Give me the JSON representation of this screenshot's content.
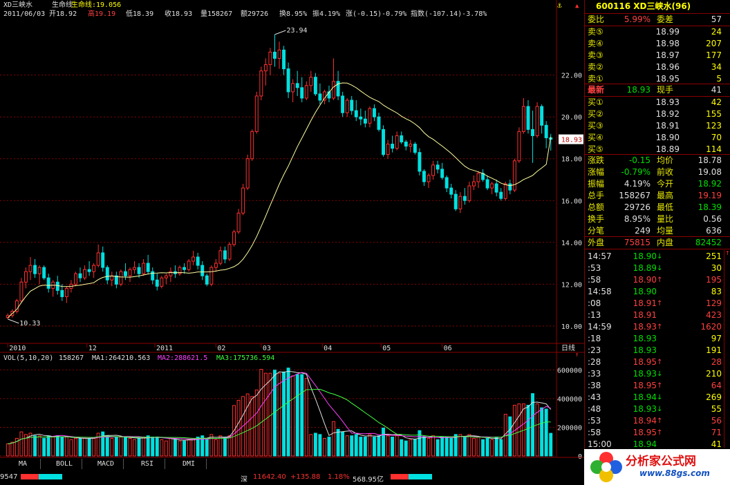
{
  "header": {
    "line1": {
      "stock": "XD三峡水",
      "indicator": "生命线",
      "indicator_value": "生命线:19.056"
    },
    "line2": {
      "date": "2011/06/03",
      "open": "开18.92",
      "high": "高19.19",
      "low": "低18.39",
      "close": "收18.93",
      "volume": "量158267",
      "amount": "额29726",
      "turnover": "换8.95%",
      "amplitude": "振4.19%",
      "change": "涨(-0.15)-0.79%",
      "index": "指数(-107.14)-3.78%"
    }
  },
  "annotations": {
    "high_label": "23.94",
    "low_label": "10.33",
    "current_price_tag": "18.93"
  },
  "price_axis": [
    "22.00",
    "20.00",
    "18.00",
    "16.00",
    "14.00",
    "12.00",
    "10.00"
  ],
  "date_axis": [
    "2010",
    "12",
    "2011",
    "02",
    "03",
    "04",
    "05",
    "06"
  ],
  "date_axis_suffix": "日线",
  "volume_header": {
    "label": "VOL(5,10,20)",
    "vol": "158267",
    "ma1": "MA1:264210.563",
    "ma2": "MA2:288621.5",
    "ma3": "MA3:175736.594"
  },
  "volume_axis": [
    "600000",
    "400000",
    "200000",
    "0"
  ],
  "tabs": [
    "MA",
    "BOLL",
    "MACD",
    "RSI",
    "DMI"
  ],
  "status_bar": {
    "left": "9547",
    "index": "深",
    "index_value": "11642.40",
    "index_change": "+135.88",
    "index_pct": "1.18%",
    "index_amount": "568.95亿"
  },
  "quote": {
    "title": "600116 XD三峡水(96)",
    "ratio_label": "委比",
    "ratio_value": "5.99%",
    "diff_label": "委差",
    "diff_value": "57",
    "asks": [
      {
        "label": "卖⑤",
        "price": "18.99",
        "vol": "24"
      },
      {
        "label": "卖④",
        "price": "18.98",
        "vol": "207"
      },
      {
        "label": "卖③",
        "price": "18.97",
        "vol": "177"
      },
      {
        "label": "卖②",
        "price": "18.96",
        "vol": "34"
      },
      {
        "label": "卖①",
        "price": "18.95",
        "vol": "5"
      }
    ],
    "last": {
      "label": "最新",
      "price": "18.93",
      "label2": "现手",
      "vol": "41"
    },
    "bids": [
      {
        "label": "买①",
        "price": "18.93",
        "vol": "42"
      },
      {
        "label": "买②",
        "price": "18.92",
        "vol": "155"
      },
      {
        "label": "买③",
        "price": "18.91",
        "vol": "123"
      },
      {
        "label": "买④",
        "price": "18.90",
        "vol": "70"
      },
      {
        "label": "买⑤",
        "price": "18.89",
        "vol": "114"
      }
    ],
    "stats": [
      {
        "l1": "涨跌",
        "v1": "-0.15",
        "c1": "dn",
        "l2": "均价",
        "v2": "18.78",
        "c2": "wh"
      },
      {
        "l1": "涨幅",
        "v1": "-0.79%",
        "c1": "dn",
        "l2": "前收",
        "v2": "19.08",
        "c2": "wh"
      },
      {
        "l1": "振幅",
        "v1": "4.19%",
        "c1": "wh",
        "l2": "今开",
        "v2": "18.92",
        "c2": "dn"
      },
      {
        "l1": "总手",
        "v1": "158267",
        "c1": "wh",
        "l2": "最高",
        "v2": "19.19",
        "c2": "up"
      },
      {
        "l1": "总额",
        "v1": "29726",
        "c1": "wh",
        "l2": "最低",
        "v2": "18.39",
        "c2": "dn"
      },
      {
        "l1": "换手",
        "v1": "8.95%",
        "c1": "wh",
        "l2": "量比",
        "v2": "0.56",
        "c2": "wh"
      },
      {
        "l1": "分笔",
        "v1": "249",
        "c1": "wh",
        "l2": "均量",
        "v2": "636",
        "c2": "wh"
      }
    ],
    "outer_label": "外盘",
    "outer_value": "75815",
    "inner_label": "内盘",
    "inner_value": "82452",
    "ticks": [
      {
        "time": "14:57",
        "price": "18.90",
        "arrow": "↓",
        "dir": "dn",
        "vol": "251"
      },
      {
        "time": ":53",
        "price": "18.89",
        "arrow": "↓",
        "dir": "dn",
        "vol": "30"
      },
      {
        "time": ":58",
        "price": "18.90",
        "arrow": "↑",
        "dir": "up",
        "vol": "195"
      },
      {
        "time": "14:58",
        "price": "18.90",
        "arrow": "",
        "dir": "dn",
        "vol": "83"
      },
      {
        "time": ":08",
        "price": "18.91",
        "arrow": "↑",
        "dir": "up",
        "vol": "129"
      },
      {
        "time": ":13",
        "price": "18.91",
        "arrow": "",
        "dir": "up",
        "vol": "423"
      },
      {
        "time": "14:59",
        "price": "18.93",
        "arrow": "↑",
        "dir": "up",
        "vol": "1620"
      },
      {
        "time": ":18",
        "price": "18.93",
        "arrow": "",
        "dir": "dn",
        "vol": "97"
      },
      {
        "time": ":23",
        "price": "18.93",
        "arrow": "",
        "dir": "dn",
        "vol": "191"
      },
      {
        "time": ":28",
        "price": "18.95",
        "arrow": "↑",
        "dir": "up",
        "vol": "28"
      },
      {
        "time": ":33",
        "price": "18.93",
        "arrow": "↓",
        "dir": "dn",
        "vol": "210"
      },
      {
        "time": ":38",
        "price": "18.95",
        "arrow": "↑",
        "dir": "up",
        "vol": "64"
      },
      {
        "time": ":43",
        "price": "18.94",
        "arrow": "↓",
        "dir": "dn",
        "vol": "269"
      },
      {
        "time": ":48",
        "price": "18.93",
        "arrow": "↓",
        "dir": "dn",
        "vol": "55"
      },
      {
        "time": ":53",
        "price": "18.94",
        "arrow": "↑",
        "dir": "up",
        "vol": "56"
      },
      {
        "time": ":58",
        "price": "18.95",
        "arrow": "↑",
        "dir": "up",
        "vol": "71"
      },
      {
        "time": "15:00",
        "price": "18.94",
        "arrow": "",
        "dir": "dn",
        "vol": "41"
      }
    ]
  },
  "logo": {
    "text": "分析家公式网",
    "url": "www.88gs.com"
  },
  "colors": {
    "up": "#ff3030",
    "down": "#00e0e0",
    "ma": "#ffffa0",
    "grid": "#8b0000",
    "ma1": "#e0e0e0",
    "ma2": "#ff40ff",
    "ma3": "#40ff40"
  },
  "chart_data": {
    "type": "candlestick",
    "price_ylim": [
      10,
      23.94
    ],
    "price_ticks": [
      10,
      12,
      14,
      16,
      18,
      20,
      22
    ],
    "candles_ohlc": [
      [
        10.4,
        10.6,
        10.33,
        10.5
      ],
      [
        10.5,
        10.8,
        10.4,
        10.7
      ],
      [
        10.7,
        11.3,
        10.6,
        11.2
      ],
      [
        11.2,
        12.3,
        11.1,
        12.1
      ],
      [
        12.1,
        12.8,
        11.8,
        12.6
      ],
      [
        12.6,
        13.3,
        12.2,
        12.9
      ],
      [
        12.9,
        13.2,
        12.3,
        12.5
      ],
      [
        12.5,
        12.9,
        12.0,
        12.8
      ],
      [
        12.8,
        12.9,
        12.2,
        12.3
      ],
      [
        12.3,
        12.5,
        11.6,
        11.8
      ],
      [
        11.8,
        12.2,
        11.4,
        12.1
      ],
      [
        12.1,
        12.4,
        11.5,
        11.7
      ],
      [
        11.7,
        12.0,
        11.2,
        11.4
      ],
      [
        11.4,
        11.9,
        11.1,
        11.8
      ],
      [
        11.8,
        12.2,
        11.6,
        12.0
      ],
      [
        12.0,
        12.6,
        11.9,
        12.5
      ],
      [
        12.5,
        12.8,
        12.1,
        12.3
      ],
      [
        12.3,
        12.9,
        12.2,
        12.7
      ],
      [
        12.7,
        13.1,
        12.4,
        12.6
      ],
      [
        12.6,
        13.0,
        12.3,
        12.9
      ],
      [
        12.9,
        13.9,
        12.8,
        13.5
      ],
      [
        13.5,
        13.8,
        12.6,
        12.8
      ],
      [
        12.8,
        12.9,
        12.0,
        12.2
      ],
      [
        12.2,
        12.6,
        11.9,
        12.4
      ],
      [
        12.4,
        12.6,
        11.8,
        12.0
      ],
      [
        12.0,
        12.7,
        11.9,
        12.6
      ],
      [
        12.6,
        13.0,
        12.2,
        12.4
      ],
      [
        12.4,
        12.8,
        12.1,
        12.7
      ],
      [
        12.7,
        13.1,
        12.5,
        12.8
      ],
      [
        12.8,
        13.0,
        12.3,
        12.5
      ],
      [
        12.5,
        13.2,
        12.4,
        13.0
      ],
      [
        13.0,
        13.4,
        12.5,
        12.6
      ],
      [
        12.6,
        12.8,
        12.0,
        12.2
      ],
      [
        12.2,
        12.5,
        11.7,
        11.9
      ],
      [
        11.9,
        12.4,
        11.8,
        12.3
      ],
      [
        12.3,
        12.5,
        12.0,
        12.4
      ],
      [
        12.4,
        12.8,
        12.1,
        12.6
      ],
      [
        12.6,
        12.9,
        12.3,
        12.5
      ],
      [
        12.5,
        12.9,
        12.4,
        12.8
      ],
      [
        12.8,
        13.0,
        12.5,
        12.7
      ],
      [
        12.7,
        13.2,
        12.6,
        13.1
      ],
      [
        13.1,
        13.6,
        12.9,
        13.3
      ],
      [
        13.3,
        13.5,
        12.7,
        12.9
      ],
      [
        12.9,
        13.1,
        12.2,
        12.4
      ],
      [
        12.4,
        12.5,
        11.9,
        12.0
      ],
      [
        12.0,
        12.9,
        11.9,
        12.8
      ],
      [
        12.8,
        13.2,
        12.6,
        13.0
      ],
      [
        13.0,
        13.8,
        12.9,
        13.6
      ],
      [
        13.6,
        13.8,
        13.0,
        13.2
      ],
      [
        13.2,
        14.0,
        13.1,
        13.9
      ],
      [
        13.9,
        14.6,
        13.8,
        14.5
      ],
      [
        14.5,
        15.6,
        14.4,
        15.4
      ],
      [
        15.4,
        16.8,
        15.3,
        16.6
      ],
      [
        16.6,
        18.2,
        16.5,
        18.0
      ],
      [
        18.0,
        19.4,
        17.9,
        19.3
      ],
      [
        19.3,
        21.2,
        19.2,
        21.0
      ],
      [
        21.0,
        22.4,
        20.8,
        22.2
      ],
      [
        22.2,
        22.8,
        21.5,
        22.5
      ],
      [
        22.5,
        23.3,
        22.0,
        23.1
      ],
      [
        23.1,
        23.94,
        22.4,
        22.8
      ],
      [
        22.8,
        23.6,
        22.3,
        23.2
      ],
      [
        23.2,
        23.4,
        22.0,
        22.3
      ],
      [
        22.3,
        22.6,
        20.9,
        21.2
      ],
      [
        21.2,
        21.8,
        20.7,
        21.6
      ],
      [
        21.6,
        22.2,
        21.0,
        21.4
      ],
      [
        21.4,
        21.9,
        20.7,
        20.9
      ],
      [
        20.9,
        21.7,
        20.8,
        21.5
      ],
      [
        21.5,
        22.2,
        21.2,
        21.9
      ],
      [
        21.9,
        22.1,
        21.0,
        21.1
      ],
      [
        21.1,
        21.6,
        20.6,
        20.8
      ],
      [
        20.8,
        21.3,
        20.6,
        21.2
      ],
      [
        21.2,
        21.5,
        20.7,
        20.9
      ],
      [
        20.9,
        22.8,
        20.8,
        21.7
      ],
      [
        21.7,
        22.2,
        20.8,
        21.0
      ],
      [
        21.0,
        21.2,
        20.0,
        20.2
      ],
      [
        20.2,
        20.9,
        20.0,
        20.8
      ],
      [
        20.8,
        21.0,
        20.1,
        20.3
      ],
      [
        20.3,
        20.8,
        19.8,
        20.0
      ],
      [
        20.0,
        20.4,
        19.6,
        19.9
      ],
      [
        19.9,
        20.3,
        19.5,
        19.7
      ],
      [
        19.7,
        20.5,
        19.5,
        20.4
      ],
      [
        20.4,
        20.6,
        19.8,
        20.0
      ],
      [
        20.0,
        20.2,
        19.3,
        19.4
      ],
      [
        19.4,
        19.6,
        18.1,
        18.2
      ],
      [
        18.2,
        18.9,
        18.0,
        18.7
      ],
      [
        18.7,
        19.1,
        18.3,
        18.5
      ],
      [
        18.5,
        19.3,
        18.4,
        19.1
      ],
      [
        19.1,
        19.3,
        18.7,
        18.8
      ],
      [
        18.8,
        18.9,
        18.4,
        18.6
      ],
      [
        18.6,
        18.9,
        18.3,
        18.7
      ],
      [
        18.7,
        18.8,
        18.2,
        18.3
      ],
      [
        18.3,
        18.5,
        17.2,
        17.4
      ],
      [
        17.4,
        17.5,
        16.7,
        16.9
      ],
      [
        16.9,
        17.3,
        16.6,
        17.2
      ],
      [
        17.2,
        17.9,
        17.0,
        17.7
      ],
      [
        17.7,
        17.9,
        17.3,
        17.5
      ],
      [
        17.5,
        17.8,
        17.0,
        17.1
      ],
      [
        17.1,
        17.2,
        16.4,
        16.6
      ],
      [
        16.6,
        16.8,
        16.1,
        16.3
      ],
      [
        16.3,
        16.5,
        15.5,
        15.6
      ],
      [
        15.6,
        16.4,
        15.4,
        16.2
      ],
      [
        16.2,
        16.6,
        15.8,
        16.0
      ],
      [
        16.0,
        16.9,
        15.9,
        16.7
      ],
      [
        16.7,
        17.2,
        16.5,
        16.9
      ],
      [
        16.9,
        17.4,
        16.6,
        17.3
      ],
      [
        17.3,
        17.5,
        16.9,
        17.0
      ],
      [
        17.0,
        17.2,
        16.5,
        16.6
      ],
      [
        16.6,
        16.9,
        16.3,
        16.8
      ],
      [
        16.8,
        17.0,
        16.2,
        16.4
      ],
      [
        16.4,
        16.6,
        16.0,
        16.1
      ],
      [
        16.1,
        16.9,
        16.0,
        16.8
      ],
      [
        16.8,
        17.0,
        16.3,
        16.5
      ],
      [
        16.5,
        18.0,
        16.4,
        17.9
      ],
      [
        17.9,
        19.5,
        17.8,
        19.3
      ],
      [
        19.3,
        20.9,
        19.2,
        20.5
      ],
      [
        20.5,
        20.8,
        19.2,
        19.4
      ],
      [
        19.4,
        20.3,
        17.8,
        19.1
      ],
      [
        19.1,
        20.7,
        19.0,
        20.5
      ],
      [
        20.5,
        20.6,
        19.2,
        19.6
      ],
      [
        19.6,
        19.8,
        18.5,
        19.0
      ],
      [
        19.0,
        19.19,
        18.39,
        18.93
      ]
    ],
    "life_line": {
      "start": 10.4,
      "end": 19.056
    },
    "volume_ylim": [
      0,
      650000
    ],
    "volume_ticks": [
      0,
      200000,
      400000,
      600000
    ],
    "volume_ma": {
      "ma1": 264210.563,
      "ma2": 288621.5,
      "ma3": 175736.594
    }
  }
}
